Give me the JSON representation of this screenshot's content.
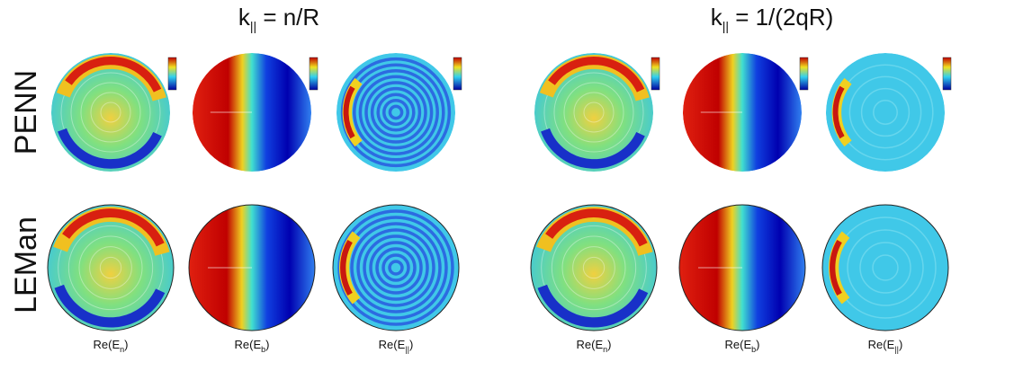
{
  "headers": [
    {
      "main": "k",
      "sub": "||",
      "rest": " = n/R"
    },
    {
      "main": "k",
      "sub": "||",
      "rest": " = 1/(2qR)"
    }
  ],
  "rows": [
    "PENN",
    "LEMan"
  ],
  "columns": [
    {
      "main": "Re(E",
      "sub": "n",
      "close": ")"
    },
    {
      "main": "Re(E",
      "sub": "b",
      "close": ")"
    },
    {
      "main": "Re(E",
      "sub": "||",
      "close": ")"
    },
    {
      "main": "Re(E",
      "sub": "n",
      "close": ")"
    },
    {
      "main": "Re(E",
      "sub": "b",
      "close": ")"
    },
    {
      "main": "Re(E",
      "sub": "||",
      "close": ")"
    }
  ]
}
